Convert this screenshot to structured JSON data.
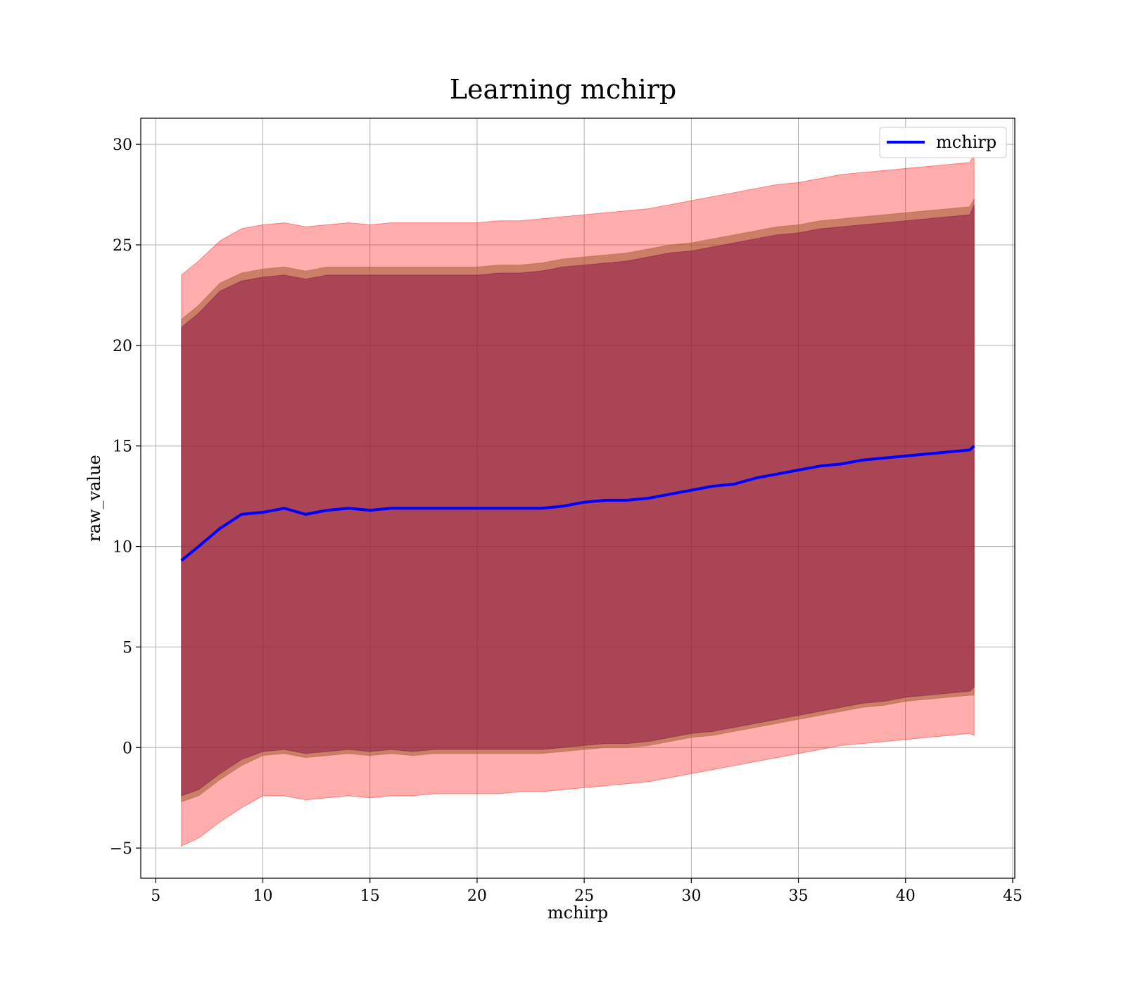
{
  "chart_data": {
    "type": "line",
    "title": "Learning mchirp",
    "xlabel": "mchirp",
    "ylabel": "raw_value",
    "xlim": [
      4.3,
      45.1
    ],
    "ylim": [
      -6.5,
      31.3
    ],
    "xticks": [
      5,
      10,
      15,
      20,
      25,
      30,
      35,
      40,
      45
    ],
    "yticks": [
      -5,
      0,
      5,
      10,
      15,
      20,
      25,
      30
    ],
    "xtick_labels": [
      "5",
      "10",
      "15",
      "20",
      "25",
      "30",
      "35",
      "40",
      "45"
    ],
    "ytick_labels": [
      "−5",
      "0",
      "5",
      "10",
      "15",
      "20",
      "25",
      "30"
    ],
    "grid": true,
    "legend": {
      "position": "top-right",
      "entries": [
        "mchirp"
      ]
    },
    "colors": {
      "line": "#0000ff",
      "outer_band": "#ff0000",
      "middle_band": "#a05a2c",
      "inner_band": "#800040",
      "grid": "#b0b0b0"
    },
    "x": [
      6.2,
      7,
      8,
      9,
      10,
      11,
      12,
      13,
      14,
      15,
      16,
      17,
      18,
      19,
      20,
      21,
      22,
      23,
      24,
      25,
      26,
      27,
      28,
      29,
      30,
      31,
      32,
      33,
      34,
      35,
      36,
      37,
      38,
      39,
      40,
      41,
      42,
      43,
      43.2
    ],
    "series": [
      {
        "name": "mchirp",
        "role": "mean",
        "values": [
          9.3,
          10.0,
          10.9,
          11.6,
          11.7,
          11.9,
          11.6,
          11.8,
          11.9,
          11.8,
          11.9,
          11.9,
          11.9,
          11.9,
          11.9,
          11.9,
          11.9,
          11.9,
          12.0,
          12.2,
          12.3,
          12.3,
          12.4,
          12.6,
          12.8,
          13.0,
          13.1,
          13.4,
          13.6,
          13.8,
          14.0,
          14.1,
          14.3,
          14.4,
          14.5,
          14.6,
          14.7,
          14.8,
          15.0
        ]
      },
      {
        "role": "inner_band",
        "lower": [
          -2.4,
          -2.1,
          -1.3,
          -0.6,
          -0.2,
          -0.1,
          -0.3,
          -0.2,
          -0.1,
          -0.2,
          -0.1,
          -0.2,
          -0.1,
          -0.1,
          -0.1,
          -0.1,
          -0.1,
          -0.1,
          0.0,
          0.1,
          0.2,
          0.2,
          0.3,
          0.5,
          0.7,
          0.8,
          1.0,
          1.2,
          1.4,
          1.6,
          1.8,
          2.0,
          2.2,
          2.3,
          2.5,
          2.6,
          2.7,
          2.8,
          3.0
        ],
        "upper": [
          20.9,
          21.6,
          22.7,
          23.2,
          23.4,
          23.5,
          23.3,
          23.5,
          23.5,
          23.5,
          23.5,
          23.5,
          23.5,
          23.5,
          23.5,
          23.6,
          23.6,
          23.7,
          23.9,
          24.0,
          24.1,
          24.2,
          24.4,
          24.6,
          24.7,
          24.9,
          25.1,
          25.3,
          25.5,
          25.6,
          25.8,
          25.9,
          26.0,
          26.1,
          26.2,
          26.3,
          26.4,
          26.5,
          27.0
        ]
      },
      {
        "role": "middle_band",
        "lower": [
          -2.7,
          -2.4,
          -1.6,
          -0.9,
          -0.4,
          -0.3,
          -0.5,
          -0.4,
          -0.3,
          -0.4,
          -0.3,
          -0.4,
          -0.3,
          -0.3,
          -0.3,
          -0.3,
          -0.3,
          -0.3,
          -0.2,
          -0.1,
          0.0,
          0.0,
          0.1,
          0.3,
          0.5,
          0.6,
          0.8,
          1.0,
          1.2,
          1.4,
          1.6,
          1.8,
          2.0,
          2.1,
          2.3,
          2.4,
          2.5,
          2.6,
          2.6
        ],
        "upper": [
          21.3,
          22.0,
          23.1,
          23.6,
          23.8,
          23.9,
          23.7,
          23.9,
          23.9,
          23.9,
          23.9,
          23.9,
          23.9,
          23.9,
          23.9,
          24.0,
          24.0,
          24.1,
          24.3,
          24.4,
          24.5,
          24.6,
          24.8,
          25.0,
          25.1,
          25.3,
          25.5,
          25.7,
          25.9,
          26.0,
          26.2,
          26.3,
          26.4,
          26.5,
          26.6,
          26.7,
          26.8,
          26.9,
          27.3
        ]
      },
      {
        "role": "outer_band",
        "lower": [
          -4.9,
          -4.5,
          -3.7,
          -3.0,
          -2.4,
          -2.4,
          -2.6,
          -2.5,
          -2.4,
          -2.5,
          -2.4,
          -2.4,
          -2.3,
          -2.3,
          -2.3,
          -2.3,
          -2.2,
          -2.2,
          -2.1,
          -2.0,
          -1.9,
          -1.8,
          -1.7,
          -1.5,
          -1.3,
          -1.1,
          -0.9,
          -0.7,
          -0.5,
          -0.3,
          -0.1,
          0.1,
          0.2,
          0.3,
          0.4,
          0.5,
          0.6,
          0.7,
          0.6
        ],
        "upper": [
          23.5,
          24.2,
          25.2,
          25.8,
          26.0,
          26.1,
          25.9,
          26.0,
          26.1,
          26.0,
          26.1,
          26.1,
          26.1,
          26.1,
          26.1,
          26.2,
          26.2,
          26.3,
          26.4,
          26.5,
          26.6,
          26.7,
          26.8,
          27.0,
          27.2,
          27.4,
          27.6,
          27.8,
          28.0,
          28.1,
          28.3,
          28.5,
          28.6,
          28.7,
          28.8,
          28.9,
          29.0,
          29.1,
          29.5
        ]
      }
    ]
  }
}
